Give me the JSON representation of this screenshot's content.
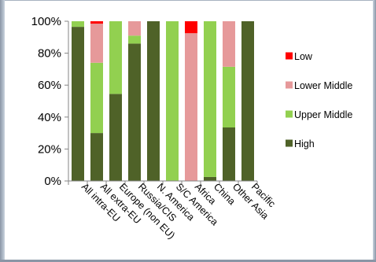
{
  "chart_data": {
    "type": "bar",
    "stacked": true,
    "percent": true,
    "categories": [
      "All intra-EU",
      "All extra-EU",
      "Europe (non EU)",
      "Russia/CIS",
      "N. America",
      "S/C America",
      "Africa",
      "China",
      "Other Asia",
      "Pacific"
    ],
    "series": [
      {
        "name": "High",
        "color": "#4f6228",
        "values": [
          96.5,
          30,
          54.5,
          86,
          100,
          0,
          0,
          2.5,
          33.5,
          100
        ]
      },
      {
        "name": "Upper Middle",
        "color": "#92d050",
        "values": [
          3.5,
          44,
          45.5,
          5,
          0,
          100,
          0,
          97.5,
          38,
          0
        ]
      },
      {
        "name": "Lower Middle",
        "color": "#e6999a",
        "values": [
          0,
          24.5,
          0,
          9,
          0,
          0,
          92.5,
          0,
          28.5,
          0
        ]
      },
      {
        "name": "Low",
        "color": "#ff0000",
        "values": [
          0,
          1.5,
          0,
          0,
          0,
          0,
          7.5,
          0,
          0,
          0
        ]
      }
    ],
    "y_ticks": [
      "0%",
      "20%",
      "40%",
      "60%",
      "80%",
      "100%"
    ],
    "ylim": [
      0,
      100
    ],
    "legend_order": [
      "Low",
      "Lower Middle",
      "Upper Middle",
      "High"
    ],
    "legend_position": "right",
    "grid": false
  }
}
